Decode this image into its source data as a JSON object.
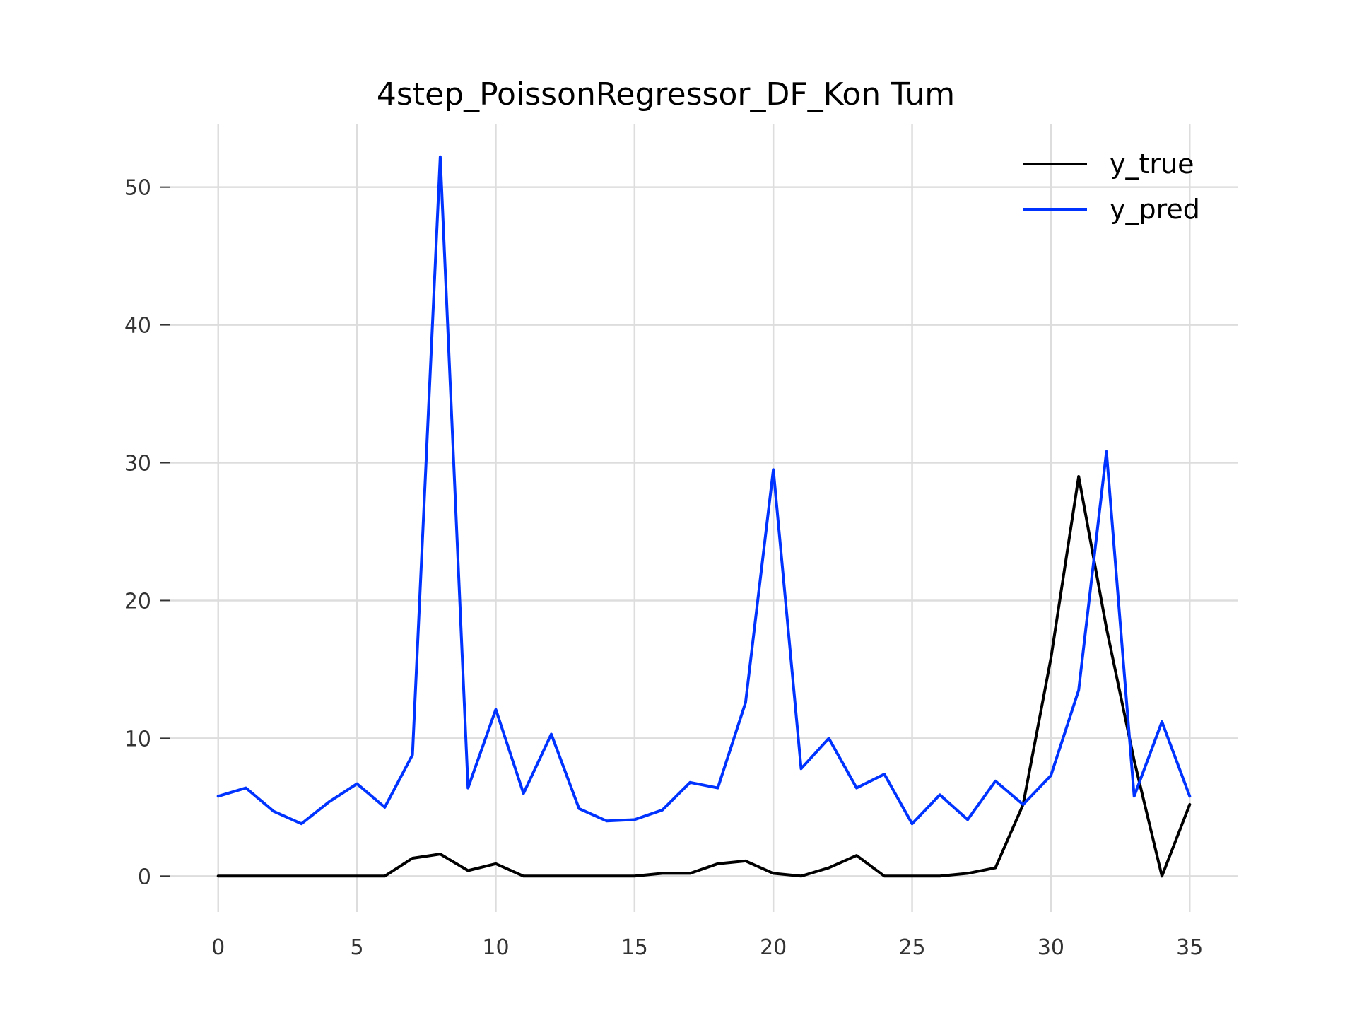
{
  "chart_data": {
    "type": "line",
    "title": "4step_PoissonRegressor_DF_Kon Tum",
    "xlabel": "",
    "ylabel": "",
    "xlim": [
      -1.75,
      36.75
    ],
    "ylim": [
      -2.6,
      54.6
    ],
    "xticks": [
      0,
      5,
      10,
      15,
      20,
      25,
      30,
      35
    ],
    "yticks": [
      0,
      10,
      20,
      30,
      40,
      50
    ],
    "grid": true,
    "legend_position": "top-right",
    "x": [
      0,
      1,
      2,
      3,
      4,
      5,
      6,
      7,
      8,
      9,
      10,
      11,
      12,
      13,
      14,
      15,
      16,
      17,
      18,
      19,
      20,
      21,
      22,
      23,
      24,
      25,
      26,
      27,
      28,
      29,
      30,
      31,
      32,
      33,
      34,
      35
    ],
    "series": [
      {
        "name": "y_true",
        "color": "#000000",
        "values": [
          0,
          0,
          0,
          0,
          0,
          0,
          0,
          1.3,
          1.6,
          0.4,
          0.9,
          0,
          0,
          0,
          0,
          0,
          0.2,
          0.2,
          0.9,
          1.1,
          0.2,
          0,
          0.6,
          1.5,
          0,
          0,
          0,
          0.2,
          0.6,
          5.2,
          15.8,
          29,
          18,
          8.4,
          0,
          5.2
        ]
      },
      {
        "name": "y_pred",
        "color": "#0033ff",
        "values": [
          5.8,
          6.4,
          4.7,
          3.8,
          5.4,
          6.7,
          5,
          8.8,
          52.2,
          6.4,
          12.1,
          6,
          10.3,
          4.9,
          4,
          4.1,
          4.8,
          6.8,
          6.4,
          12.6,
          29.5,
          7.8,
          10,
          6.4,
          7.4,
          3.8,
          5.9,
          4.1,
          6.9,
          5.2,
          7.3,
          13.5,
          30.8,
          5.8,
          11.2,
          5.8
        ]
      }
    ]
  }
}
